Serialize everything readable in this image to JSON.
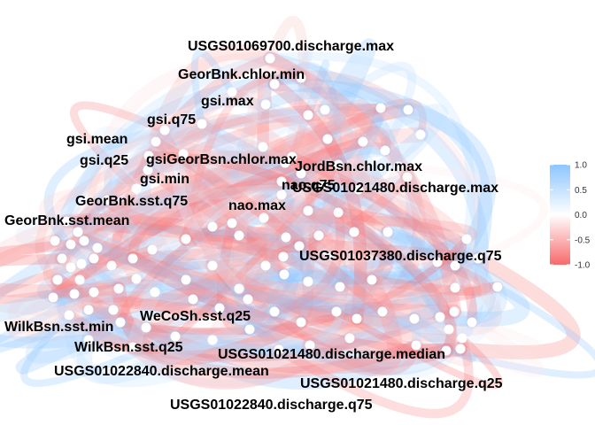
{
  "chart_data": {
    "type": "network",
    "title": "",
    "edge_color_scale": {
      "min": -1.0,
      "max": 1.0,
      "low_color": "#f8696b",
      "mid_color": "#ffffff",
      "high_color": "#8cc5ff",
      "ticks": [
        "1.0",
        "0.5",
        "0.0",
        "-0.5",
        "-1.0"
      ],
      "tick_values": [
        1.0,
        0.5,
        0.0,
        -0.5,
        -1.0
      ]
    },
    "node_labels": [
      "USGS01069700.discharge.max",
      "GeorBnk.chlor.min",
      "gsi.max",
      "gsi.q75",
      "gsi.mean",
      "gsi.q25",
      "gsiGeorBsn.chlor.max",
      "gsi.min",
      "GeorBnk.sst.q75",
      "JordBsn.chlor.max",
      "nao.q75",
      "USGS01021480.discharge.max",
      "nao.max",
      "GeorBnk.sst.mean",
      "USGS01037380.discharge.q75",
      "WeCoSh.sst.q25",
      "WilkBsn.sst.min",
      "WilkBsn.sst.q25",
      "USGS01021480.discharge.median",
      "USGS01022840.discharge.mean",
      "USGS01021480.discharge.q25",
      "USGS01022840.discharge.q75"
    ]
  }
}
